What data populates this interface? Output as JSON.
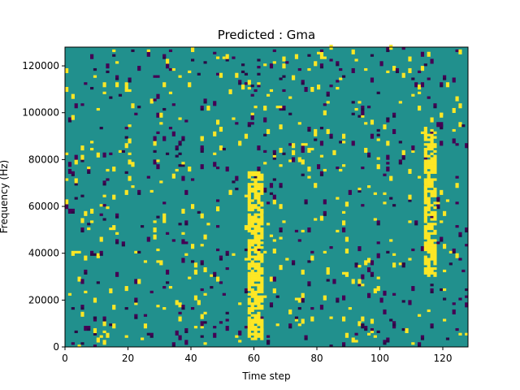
{
  "chart_data": {
    "type": "heatmap",
    "title": "Predicted : Gma",
    "xlabel": "Time step",
    "ylabel": "Frequency (Hz)",
    "xlim": [
      0,
      128
    ],
    "ylim": [
      0,
      128000
    ],
    "x_ticks": [
      0,
      20,
      40,
      60,
      80,
      100,
      120
    ],
    "y_ticks": [
      0,
      20000,
      40000,
      60000,
      80000,
      100000,
      120000
    ],
    "grid_size": [
      128,
      128
    ],
    "colormap": "viridis",
    "colors": {
      "background": "#21908d",
      "high": "#fde725",
      "low": "#440154",
      "lowest": "#2a0b45"
    },
    "dense_high_bands": [
      {
        "x_range": [
          58,
          63
        ],
        "y_range": [
          3000,
          75000
        ]
      },
      {
        "x_range": [
          114,
          118
        ],
        "y_range": [
          30000,
          92000
        ]
      }
    ],
    "sparse_pixels": "scattered high/low single-bin activations across all time steps"
  }
}
